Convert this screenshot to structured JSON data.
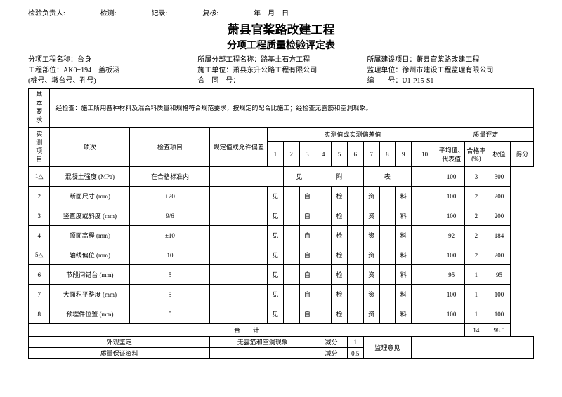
{
  "header": {
    "inspector_label": "检验负责人:",
    "test_label": "检测:",
    "record_label": "记录:",
    "review_label": "复核:",
    "date_label": "年　月　日"
  },
  "title": "萧县官桨路改建工程",
  "subtitle": "分项工程质量检验评定表",
  "info": {
    "l1": "分项工程名称：台身",
    "l2": "工程部位：AK0+194　盖板涵",
    "l3": "(桩号、墩台号、孔号)",
    "m1": "所属分部工程名称：路基土石方工程",
    "m2": "施工单位：萧县东升公路工程有限公司",
    "m3": "合　同　号：",
    "r1": "所属建设项目：萧县官桨路改建工程",
    "r2": "监理单位：徐州市建设工程监理有限公司",
    "r3": "编　　号：U1-P15-S1"
  },
  "labels": {
    "basic_req": "基本要求",
    "basic_req_text": "经检查：施工所用各种材料及混合料质量和规格符合规范要求，按规定的配合比施工；经检查无露筋和空洞现象。",
    "measured": "实测项目",
    "seq": "项次",
    "check_item": "检查项目",
    "spec": "规定值或允许偏差",
    "measured_vals": "实测值或实测偏差值",
    "quality": "质量评定",
    "avg": "平均值、代表值",
    "pass_rate": "合格率(%)",
    "weight": "权值",
    "score": "得分",
    "sum": "合　　计",
    "appearance": "外观鉴定",
    "appearance_val": "无露筋和空洞现象",
    "quality_data": "质量保证资料",
    "deduct": "减分",
    "deduct_v1": "1",
    "deduct_v2": "0.5",
    "supervision": "监理意见"
  },
  "m_nums": [
    "1",
    "2",
    "3",
    "4",
    "5",
    "6",
    "7",
    "8",
    "9",
    "10"
  ],
  "rows": [
    {
      "seq": "1△",
      "item": "混凝土强度 (MPa)",
      "spec": "在合格标准内",
      "span": true,
      "rate": "100",
      "weight": "3",
      "score": "300"
    },
    {
      "seq": "2",
      "item": "断面尺寸 (mm)",
      "spec": "±20",
      "rate": "100",
      "weight": "2",
      "score": "200"
    },
    {
      "seq": "3",
      "item": "竖直度或斜度 (mm)",
      "spec": "9/6",
      "rate": "100",
      "weight": "2",
      "score": "200"
    },
    {
      "seq": "4",
      "item": "顶面高程 (mm)",
      "spec": "±10",
      "rate": "92",
      "weight": "2",
      "score": "184"
    },
    {
      "seq": "5△",
      "item": "轴线偏位 (mm)",
      "spec": "10",
      "rate": "100",
      "weight": "2",
      "score": "200"
    },
    {
      "seq": "6",
      "item": "节段间错台 (mm)",
      "spec": "5",
      "rate": "95",
      "weight": "1",
      "score": "95"
    },
    {
      "seq": "7",
      "item": "大面积平整度 (mm)",
      "spec": "5",
      "rate": "100",
      "weight": "1",
      "score": "100"
    },
    {
      "seq": "8",
      "item": "预埋件位置 (mm)",
      "spec": "5",
      "rate": "100",
      "weight": "1",
      "score": "100"
    }
  ],
  "std_cells": [
    "",
    "见",
    "",
    "自",
    "",
    "检",
    "",
    "资",
    "",
    "料"
  ],
  "span_cells": [
    "见",
    "附",
    "表"
  ],
  "sum_weight": "14",
  "sum_score": "98.5"
}
